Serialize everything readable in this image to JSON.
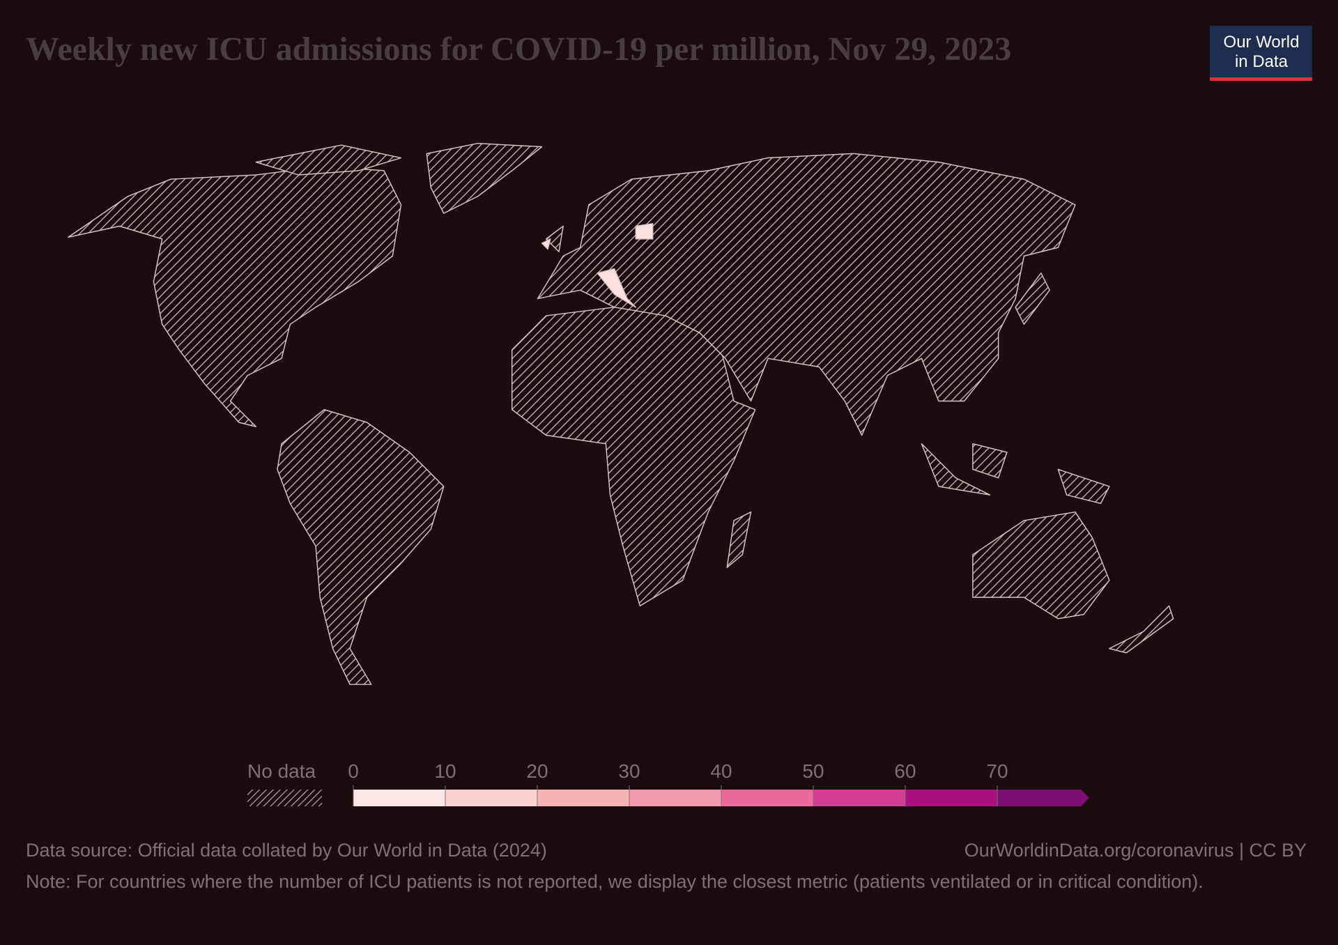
{
  "header": {
    "title": "Weekly new ICU admissions for COVID-19 per million, Nov 29, 2023"
  },
  "logo": {
    "line1": "Our World",
    "line2": "in Data"
  },
  "legend": {
    "no_data_label": "No data",
    "ticks": [
      0,
      10,
      20,
      30,
      40,
      50,
      60,
      70
    ],
    "colors": [
      "#fde6e6",
      "#fbd0d0",
      "#f7b4b4",
      "#f199ae",
      "#ea6a9b",
      "#d33c93",
      "#a8117d",
      "#7b0f72"
    ]
  },
  "footer": {
    "source": "Data source: Official data collated by Our World in Data (2024)",
    "url": "OurWorldinData.org/coronavirus | CC BY",
    "note": "Note: For countries where the number of ICU patients is not reported, we display the closest metric (patients ventilated or in critical condition)."
  }
}
